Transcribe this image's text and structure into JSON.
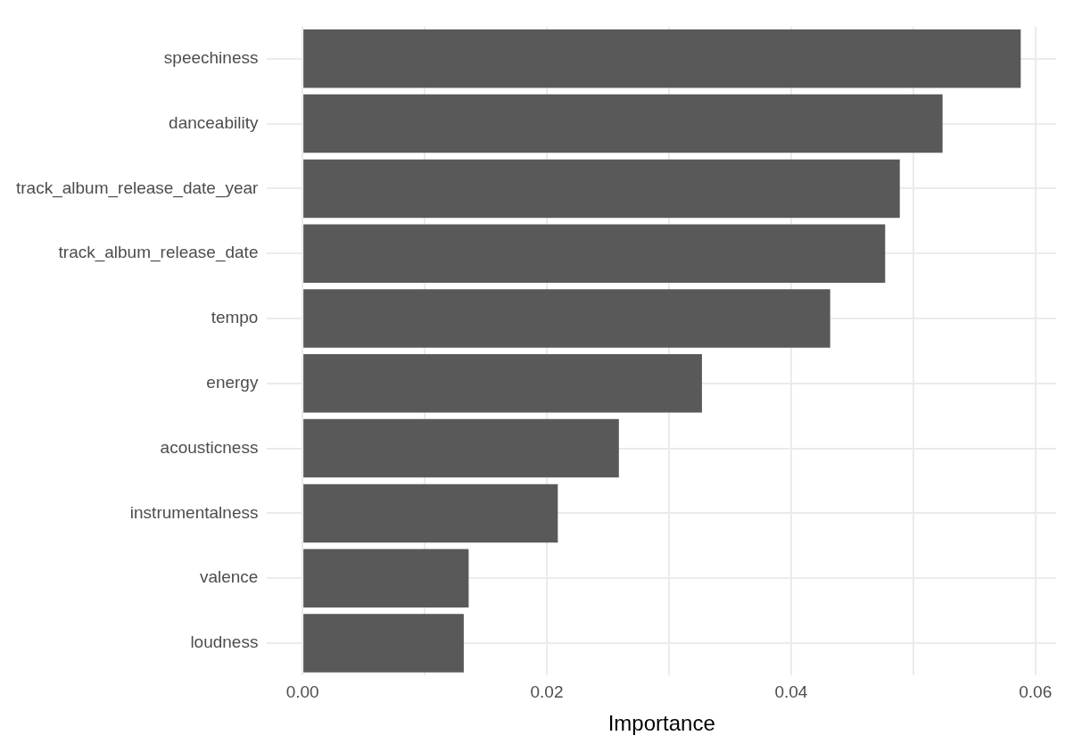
{
  "chart_data": {
    "type": "bar",
    "orientation": "horizontal",
    "xlabel": "Importance",
    "categories": [
      "speechiness",
      "danceability",
      "track_album_release_date_year",
      "track_album_release_date",
      "tempo",
      "energy",
      "acousticness",
      "instrumentalness",
      "valence",
      "loudness"
    ],
    "values": [
      0.0588,
      0.0524,
      0.0489,
      0.0477,
      0.0432,
      0.0327,
      0.0259,
      0.0209,
      0.0136,
      0.0132
    ],
    "color": "#595959",
    "xlim": [
      -0.0029,
      0.0617
    ],
    "xticks": [
      {
        "value": 0,
        "label": "0.00"
      },
      {
        "value": 0.01,
        "label": null
      },
      {
        "value": 0.02,
        "label": "0.02"
      },
      {
        "value": 0.03,
        "label": null
      },
      {
        "value": 0.04,
        "label": "0.04"
      },
      {
        "value": 0.05,
        "label": null
      },
      {
        "value": 0.06,
        "label": "0.06"
      }
    ],
    "grid": true
  }
}
